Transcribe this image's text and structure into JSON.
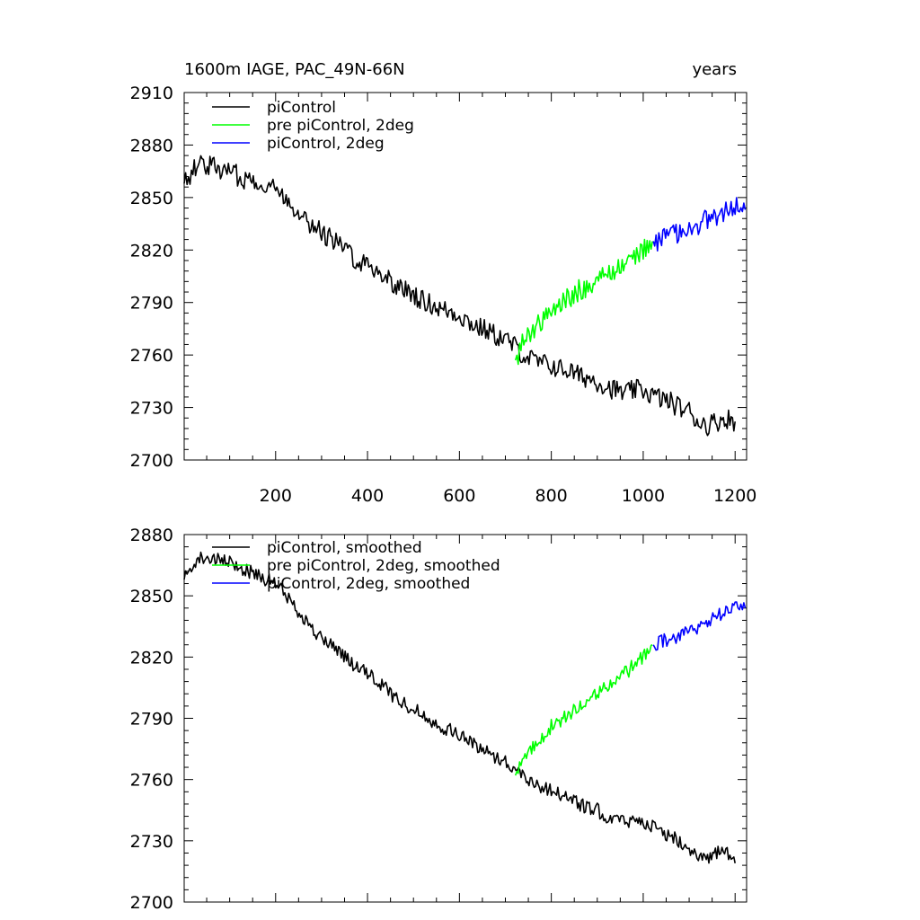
{
  "chart_data": [
    {
      "type": "line",
      "title": "1600m IAGE, PAC_49N-66N",
      "title_right": "years",
      "xlabel": "",
      "ylabel": "",
      "xlim": [
        1,
        1225
      ],
      "ylim": [
        2700,
        2910
      ],
      "xticks": [
        200,
        400,
        600,
        800,
        1000,
        1200
      ],
      "yticks": [
        2700,
        2730,
        2760,
        2790,
        2820,
        2850,
        2880,
        2910
      ],
      "legend_position": "top-left",
      "series": [
        {
          "name": "piControl",
          "color": "#000000",
          "x": [
            1,
            20,
            40,
            60,
            80,
            100,
            120,
            140,
            160,
            180,
            200,
            220,
            240,
            260,
            280,
            300,
            320,
            340,
            360,
            380,
            400,
            420,
            440,
            460,
            480,
            500,
            520,
            540,
            560,
            580,
            600,
            620,
            640,
            660,
            680,
            700,
            720,
            740,
            760,
            780,
            800,
            820,
            840,
            860,
            880,
            900,
            920,
            940,
            960,
            980,
            1000,
            1020,
            1040,
            1060,
            1080,
            1100,
            1120,
            1140,
            1160,
            1180,
            1200
          ],
          "values": [
            2858,
            2866,
            2870,
            2868,
            2866,
            2865,
            2862,
            2860,
            2860,
            2857,
            2855,
            2850,
            2845,
            2840,
            2834,
            2830,
            2827,
            2823,
            2818,
            2814,
            2812,
            2808,
            2805,
            2800,
            2797,
            2795,
            2791,
            2789,
            2786,
            2785,
            2783,
            2779,
            2776,
            2774,
            2771,
            2769,
            2765,
            2760,
            2757,
            2755,
            2754,
            2752,
            2751,
            2748,
            2747,
            2745,
            2742,
            2740,
            2738,
            2740,
            2740,
            2737,
            2735,
            2733,
            2730,
            2728,
            2722,
            2720,
            2722,
            2724,
            2722
          ]
        },
        {
          "name": "pre piControl, 2deg",
          "color": "#00ff00",
          "x": [
            722,
            740,
            760,
            780,
            800,
            820,
            840,
            860,
            880,
            900,
            920,
            940,
            960,
            980,
            1000,
            1020
          ],
          "values": [
            2757,
            2768,
            2775,
            2780,
            2785,
            2789,
            2793,
            2797,
            2799,
            2803,
            2806,
            2809,
            2812,
            2816,
            2820,
            2825
          ]
        },
        {
          "name": "piControl, 2deg",
          "color": "#0000ff",
          "x": [
            1022,
            1040,
            1060,
            1080,
            1100,
            1120,
            1140,
            1160,
            1180,
            1200,
            1222
          ],
          "values": [
            2825,
            2826,
            2828,
            2830,
            2835,
            2834,
            2838,
            2840,
            2843,
            2845,
            2843
          ]
        }
      ]
    },
    {
      "type": "line",
      "title": "",
      "xlabel": "",
      "ylabel": "",
      "xlim": [
        1,
        1225
      ],
      "ylim": [
        2700,
        2880
      ],
      "xticks": [
        200,
        400,
        600,
        800,
        1000,
        1200
      ],
      "yticks": [
        2700,
        2730,
        2760,
        2790,
        2820,
        2850,
        2880
      ],
      "legend_position": "top-left",
      "series": [
        {
          "name": "piControl, smoothed",
          "color": "#000000",
          "x": [
            1,
            20,
            40,
            60,
            80,
            100,
            120,
            140,
            160,
            180,
            200,
            220,
            240,
            260,
            280,
            300,
            320,
            340,
            360,
            380,
            400,
            420,
            440,
            460,
            480,
            500,
            520,
            540,
            560,
            580,
            600,
            620,
            640,
            660,
            680,
            700,
            720,
            740,
            760,
            780,
            800,
            820,
            840,
            860,
            880,
            900,
            920,
            940,
            960,
            980,
            1000,
            1020,
            1040,
            1060,
            1080,
            1100,
            1120,
            1140,
            1160,
            1180,
            1200
          ],
          "values": [
            2858,
            2866,
            2869,
            2868,
            2867,
            2866,
            2864,
            2862,
            2861,
            2858,
            2856,
            2851,
            2845,
            2840,
            2833,
            2829,
            2826,
            2823,
            2818,
            2814,
            2812,
            2808,
            2805,
            2800,
            2797,
            2795,
            2792,
            2789,
            2786,
            2784,
            2782,
            2779,
            2776,
            2774,
            2771,
            2769,
            2765,
            2762,
            2759,
            2756,
            2755,
            2753,
            2751,
            2748,
            2746,
            2745,
            2742,
            2741,
            2739,
            2740,
            2740,
            2737,
            2734,
            2732,
            2730,
            2727,
            2722,
            2720,
            2724,
            2724,
            2719
          ]
        },
        {
          "name": "pre piControl, 2deg, smoothed",
          "color": "#00ff00",
          "x": [
            722,
            740,
            760,
            780,
            800,
            820,
            840,
            860,
            880,
            900,
            920,
            940,
            960,
            980,
            1000,
            1020
          ],
          "values": [
            2762,
            2770,
            2776,
            2781,
            2786,
            2789,
            2792,
            2796,
            2799,
            2803,
            2806,
            2809,
            2812,
            2816,
            2820,
            2826
          ]
        },
        {
          "name": "piControl, 2deg, smoothed",
          "color": "#0000ff",
          "x": [
            1022,
            1040,
            1060,
            1080,
            1100,
            1120,
            1140,
            1160,
            1180,
            1200,
            1222
          ],
          "values": [
            2826,
            2828,
            2829,
            2831,
            2834,
            2834,
            2838,
            2840,
            2842,
            2845,
            2844
          ]
        }
      ]
    }
  ]
}
